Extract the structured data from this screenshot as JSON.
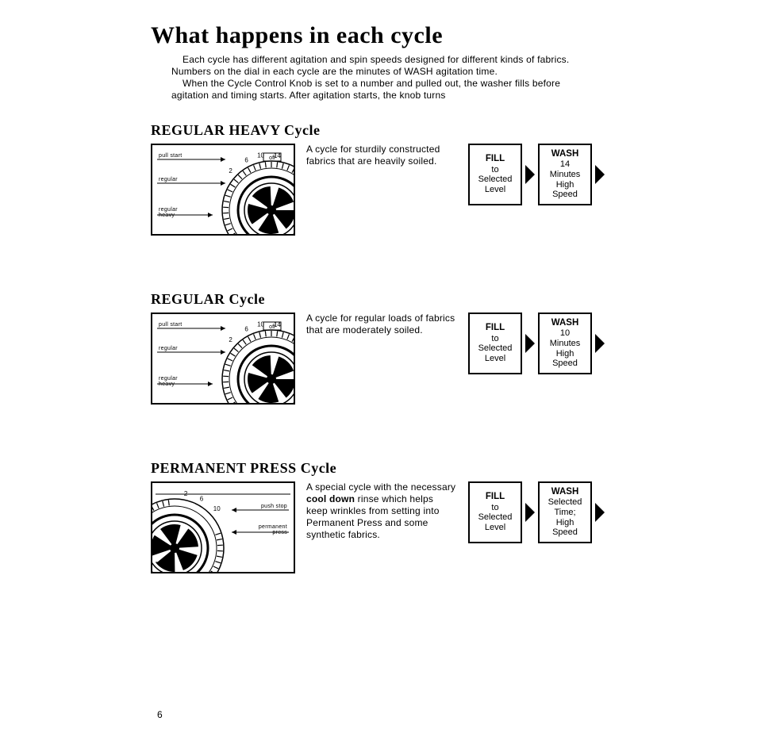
{
  "title": "What happens in each cycle",
  "intro": {
    "p1": "Each cycle has different agitation and spin speeds designed for different kinds of fabrics. Numbers on the dial in each cycle are the minutes of WASH agitation time.",
    "p2": "When the Cycle Control Knob is set to a number and pulled out, the washer fills before agitation and timing starts. After agitation starts, the knob turns"
  },
  "cycles": [
    {
      "title": "REGULAR HEAVY Cycle",
      "desc": "A cycle for sturdily constructed fabrics that are heavily soiled.",
      "dial_side": "right",
      "dial_labels": {
        "a": "pull start",
        "b": "regular",
        "c": "regular heavy",
        "nums": [
          "2",
          "6",
          "10",
          "14"
        ]
      },
      "flow": [
        {
          "head": "FILL",
          "lines": [
            "to",
            "Selected",
            "Level"
          ]
        },
        {
          "head": "WASH",
          "lines": [
            "14",
            "Minutes",
            "High",
            "Speed"
          ]
        }
      ]
    },
    {
      "title": "REGULAR Cycle",
      "desc": "A cycle for regular loads of fabrics that are moderately soiled.",
      "dial_side": "right",
      "dial_labels": {
        "a": "pull start",
        "b": "regular",
        "c": "regular heavy",
        "nums": [
          "2",
          "6",
          "10",
          "14"
        ]
      },
      "flow": [
        {
          "head": "FILL",
          "lines": [
            "to",
            "Selected",
            "Level"
          ]
        },
        {
          "head": "WASH",
          "lines": [
            "10",
            "Minutes",
            "High",
            "Speed"
          ]
        }
      ]
    },
    {
      "title": "PERMANENT PRESS Cycle",
      "desc_html": "A special cycle with the necessary <b>cool down</b> rinse which helps keep wrinkles from setting into Permanent Press and some synthetic fabrics.",
      "dial_side": "left",
      "dial_labels": {
        "a": "push stop",
        "b": "permanent press",
        "nums": [
          "10",
          "6",
          "2"
        ]
      },
      "flow": [
        {
          "head": "FILL",
          "lines": [
            "to",
            "Selected",
            "Level"
          ]
        },
        {
          "head": "WASH",
          "lines": [
            "Selected",
            "Time;",
            "High",
            "Speed"
          ]
        }
      ]
    }
  ],
  "page_number": "6",
  "colors": {
    "text": "#000000",
    "bg": "#ffffff",
    "border": "#000000"
  }
}
